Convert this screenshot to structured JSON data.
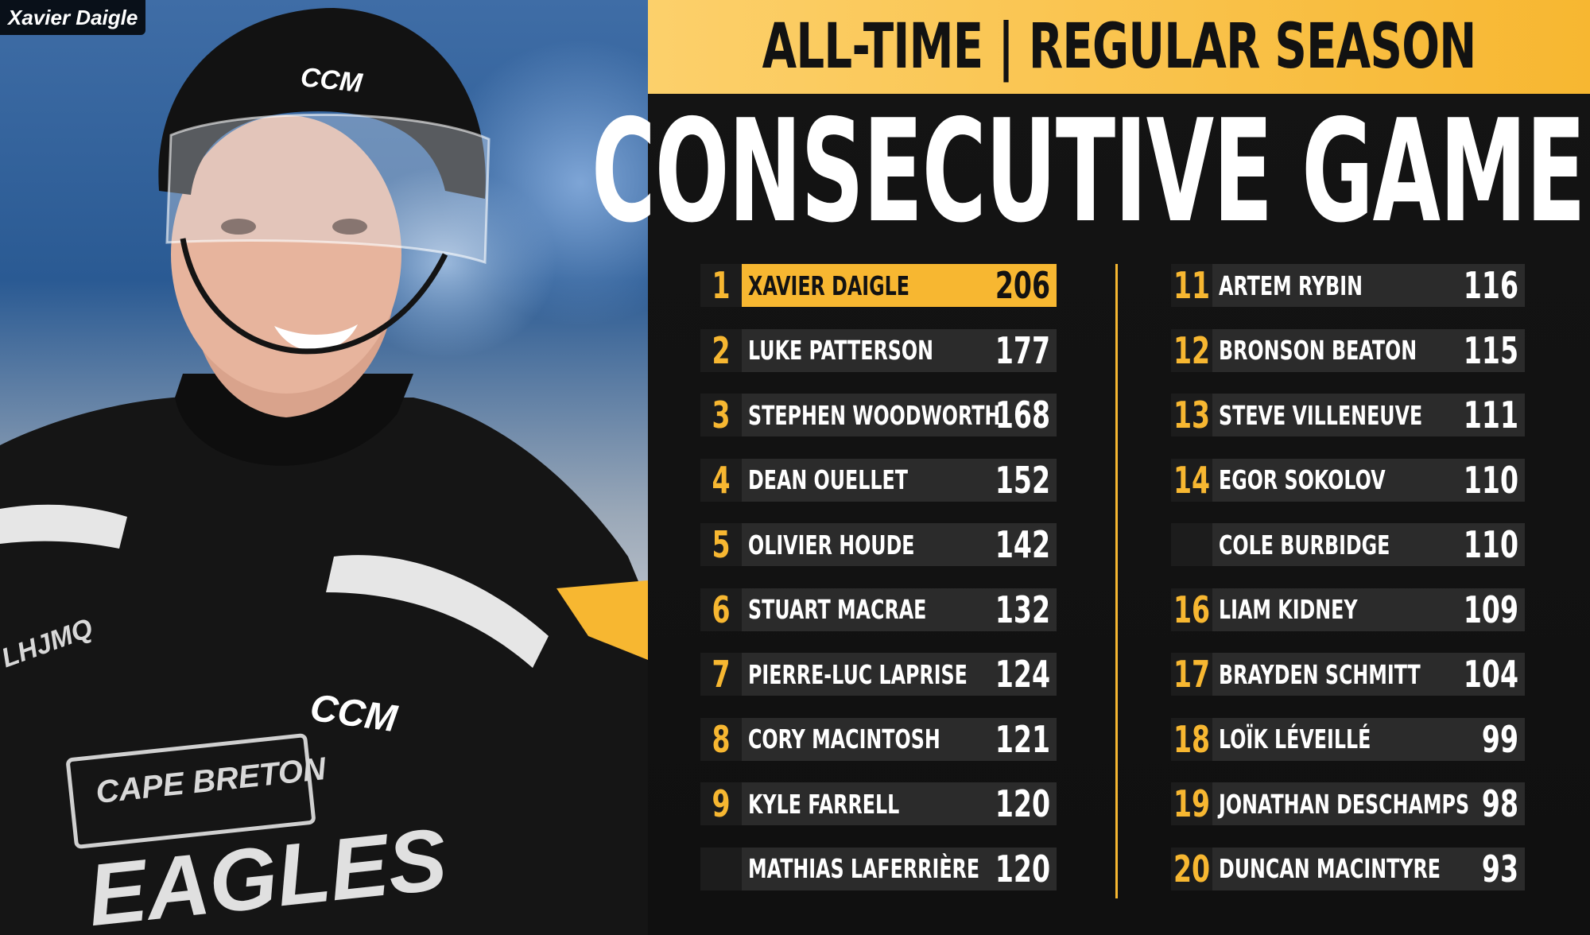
{
  "photo": {
    "caption": "Xavier Daigle",
    "helmet_brand": "CCM",
    "jersey_brand": "CCM",
    "jersey_text_line1": "CAPE BRETON",
    "jersey_text_line2": "EAGLES",
    "league_patch": "LHJMQ"
  },
  "header": {
    "banner": "ALL-TIME | REGULAR SEASON",
    "title": "CONSECUTIVE GAMES"
  },
  "colors": {
    "accent": "#f7b731",
    "bar": "#2b2b2b",
    "background": "#101010"
  },
  "leaderboard": {
    "left": [
      {
        "rank": "1",
        "name": "XAVIER DAIGLE",
        "value": "206",
        "highlight": true
      },
      {
        "rank": "2",
        "name": "LUKE PATTERSON",
        "value": "177"
      },
      {
        "rank": "3",
        "name": "STEPHEN WOODWORTH",
        "value": "168"
      },
      {
        "rank": "4",
        "name": "DEAN OUELLET",
        "value": "152"
      },
      {
        "rank": "5",
        "name": "OLIVIER HOUDE",
        "value": "142"
      },
      {
        "rank": "6",
        "name": "STUART MACRAE",
        "value": "132"
      },
      {
        "rank": "7",
        "name": "PIERRE-LUC LAPRISE",
        "value": "124"
      },
      {
        "rank": "8",
        "name": "CORY MACINTOSH",
        "value": "121"
      },
      {
        "rank": "9",
        "name": "KYLE FARRELL",
        "value": "120"
      },
      {
        "rank": "",
        "name": "MATHIAS LAFERRIÈRE",
        "value": "120"
      }
    ],
    "right": [
      {
        "rank": "11",
        "name": "ARTEM RYBIN",
        "value": "116"
      },
      {
        "rank": "12",
        "name": "BRONSON BEATON",
        "value": "115"
      },
      {
        "rank": "13",
        "name": "STEVE VILLENEUVE",
        "value": "111"
      },
      {
        "rank": "14",
        "name": "EGOR SOKOLOV",
        "value": "110"
      },
      {
        "rank": "",
        "name": "COLE BURBIDGE",
        "value": "110"
      },
      {
        "rank": "16",
        "name": "LIAM KIDNEY",
        "value": "109"
      },
      {
        "rank": "17",
        "name": "BRAYDEN SCHMITT",
        "value": "104"
      },
      {
        "rank": "18",
        "name": "LOÏK LÉVEILLÉ",
        "value": "99"
      },
      {
        "rank": "19",
        "name": "JONATHAN DESCHAMPS",
        "value": "98"
      },
      {
        "rank": "20",
        "name": "DUNCAN MACINTYRE",
        "value": "93"
      }
    ]
  }
}
